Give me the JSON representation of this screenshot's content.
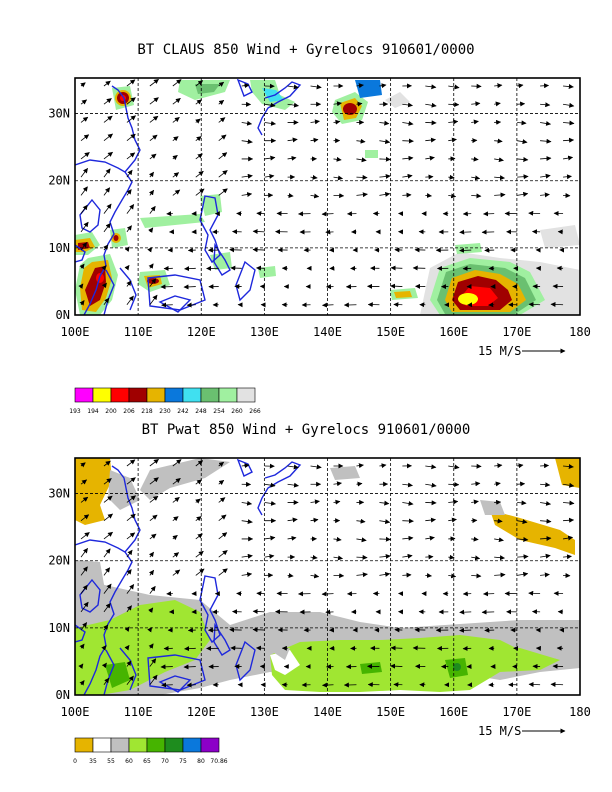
{
  "panels": [
    {
      "title": "BT CLAUS 850 Wind + Gyrelocs 910601/0000",
      "x_ticks": [
        "100E",
        "110E",
        "120E",
        "130E",
        "140E",
        "150E",
        "160E",
        "170E",
        "180"
      ],
      "y_ticks": [
        "0N",
        "10N",
        "20N",
        "30N"
      ],
      "ref_vector": "15 M/S",
      "colorbar_labels": [
        "193",
        "194",
        "200",
        "206",
        "218",
        "230",
        "242",
        "248",
        "254",
        "260",
        "266"
      ],
      "colorbar_colors": [
        "#ff00ff",
        "#ffff00",
        "#ff0000",
        "#a00000",
        "#e6b400",
        "#0a78dc",
        "#40e0f0",
        "#6ac070",
        "#a0f0a0",
        "#e2e2e2"
      ]
    },
    {
      "title": "BT Pwat 850 Wind + Gyrelocs 910601/0000",
      "x_ticks": [
        "100E",
        "110E",
        "120E",
        "130E",
        "140E",
        "150E",
        "160E",
        "170E",
        "180"
      ],
      "y_ticks": [
        "0N",
        "10N",
        "20N",
        "30N"
      ],
      "ref_vector": "15 M/S",
      "colorbar_labels": [
        "0",
        "35",
        "55",
        "60",
        "65",
        "70",
        "75",
        "80",
        "70.86"
      ],
      "colorbar_colors": [
        "#e6b400",
        "#ffffff",
        "#c0c0c0",
        "#a0e632",
        "#46b400",
        "#1e8c1e",
        "#0a78dc",
        "#8c00c8"
      ]
    }
  ]
}
